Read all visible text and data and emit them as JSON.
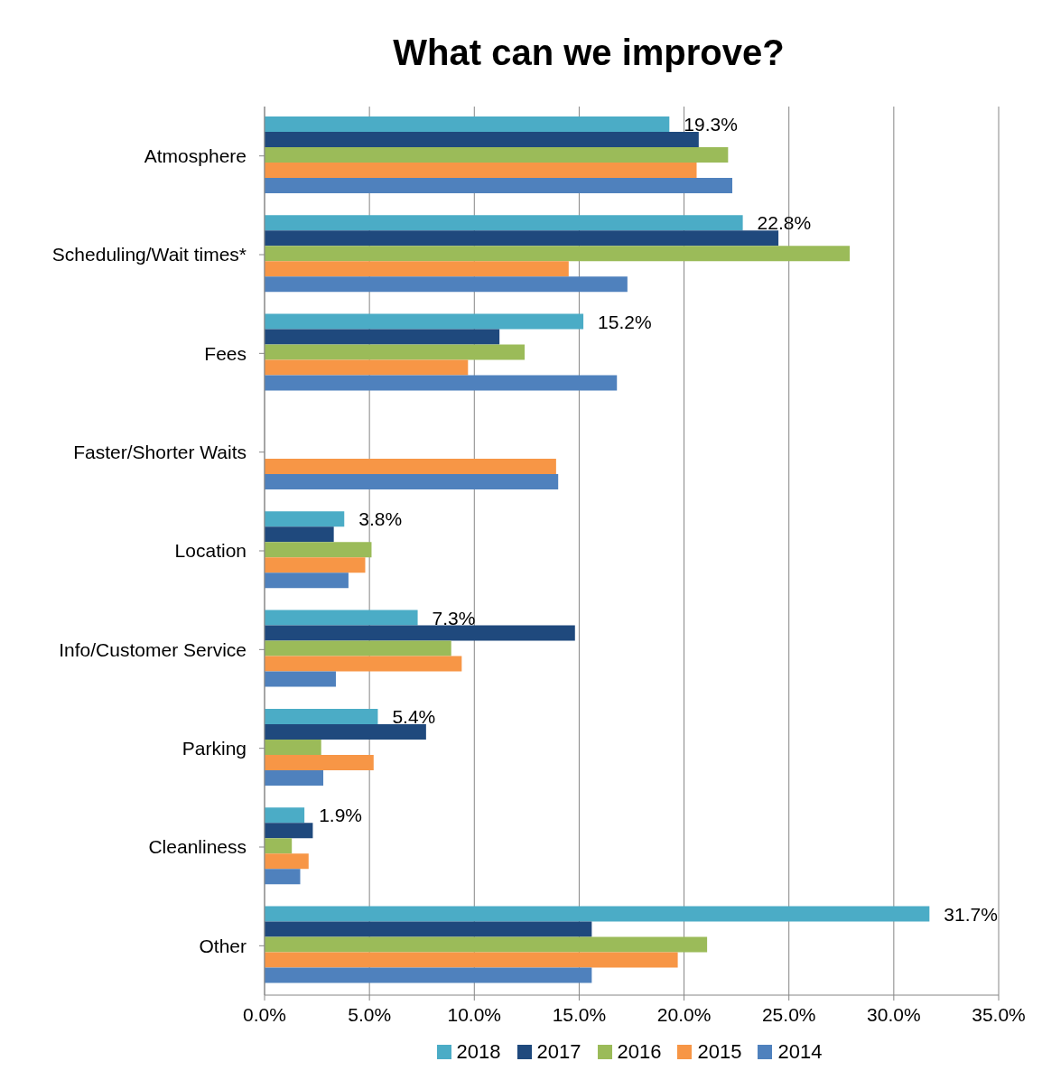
{
  "chart_data": {
    "type": "bar",
    "orientation": "horizontal",
    "title": "What can we improve?",
    "categories": [
      "Atmosphere",
      "Scheduling/Wait times*",
      "Fees",
      "Faster/Shorter Waits",
      "Location",
      "Info/Customer Service",
      "Parking",
      "Cleanliness",
      "Other"
    ],
    "series": [
      {
        "name": "2018",
        "color": "#4bacc6",
        "values": [
          19.3,
          22.8,
          15.2,
          null,
          3.8,
          7.3,
          5.4,
          1.9,
          31.7
        ],
        "value_labels": [
          "19.3%",
          "22.8%",
          "15.2%",
          null,
          "3.8%",
          "7.3%",
          "5.4%",
          "1.9%",
          "31.7%"
        ]
      },
      {
        "name": "2017",
        "color": "#1f497d",
        "values": [
          20.7,
          24.5,
          11.2,
          null,
          3.3,
          14.8,
          7.7,
          2.3,
          15.6
        ]
      },
      {
        "name": "2016",
        "color": "#9bbb59",
        "values": [
          22.1,
          27.9,
          12.4,
          null,
          5.1,
          8.9,
          2.7,
          1.3,
          21.1
        ]
      },
      {
        "name": "2015",
        "color": "#f79646",
        "values": [
          20.6,
          14.5,
          9.7,
          13.9,
          4.8,
          9.4,
          5.2,
          2.1,
          19.7
        ]
      },
      {
        "name": "2014",
        "color": "#4f81bd",
        "values": [
          22.3,
          17.3,
          16.8,
          14.0,
          4.0,
          3.4,
          2.8,
          1.7,
          15.6
        ]
      }
    ],
    "xlim": [
      0,
      35
    ],
    "xticks": [
      {
        "value": 0,
        "label": "0.0%"
      },
      {
        "value": 5,
        "label": "5.0%"
      },
      {
        "value": 10,
        "label": "10.0%"
      },
      {
        "value": 15,
        "label": "15.0%"
      },
      {
        "value": 20,
        "label": "20.0%"
      },
      {
        "value": 25,
        "label": "25.0%"
      },
      {
        "value": 30,
        "label": "30.0%"
      },
      {
        "value": 35,
        "label": "35.0%"
      }
    ],
    "grid": "x",
    "legend": "bottom"
  }
}
